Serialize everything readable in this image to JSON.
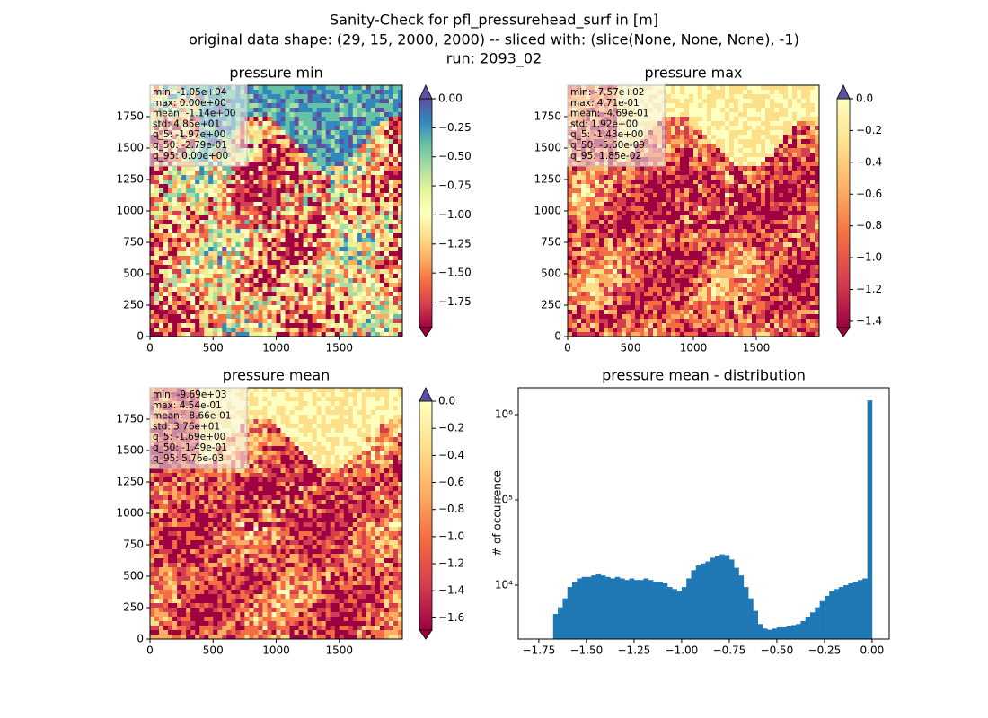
{
  "title_lines": [
    "Sanity-Check for pfl_pressurehead_surf in [m]",
    "original data shape: (29, 15, 2000, 2000) -- sliced with: (slice(None, None, None), -1)",
    "run: 2093_02"
  ],
  "chart_data": [
    {
      "type": "heatmap",
      "title": "pressure min",
      "palette": "full",
      "stats": [
        "min: -1.05e+04",
        "max: 0.00e+00",
        "mean: -1.14e+00",
        "std: 4.85e+01",
        "q_5: -1.97e+00",
        "q_50: -2.79e-01",
        "q_95: 0.00e+00"
      ],
      "xlim": [
        0,
        2000
      ],
      "ylim": [
        0,
        2000
      ],
      "xticks": [
        0,
        500,
        1000,
        1500
      ],
      "yticks": [
        0,
        250,
        500,
        750,
        1000,
        1250,
        1500,
        1750
      ],
      "clim": [
        -1.97,
        0
      ],
      "cticks": [
        {
          "value": 0,
          "label": "0.00"
        },
        {
          "value": -0.25,
          "label": "−0.25"
        },
        {
          "value": -0.5,
          "label": "−0.50"
        },
        {
          "value": -0.75,
          "label": "−0.75"
        },
        {
          "value": -1,
          "label": "−1.00"
        },
        {
          "value": -1.25,
          "label": "−1.25"
        },
        {
          "value": -1.5,
          "label": "−1.50"
        },
        {
          "value": -1.75,
          "label": "−1.75"
        }
      ]
    },
    {
      "type": "heatmap",
      "title": "pressure max",
      "palette": "half",
      "stats": [
        "min: -7.57e+02",
        "max: 4.71e-01",
        "mean: -4.69e-01",
        "std: 1.92e+00",
        "q_5: -1.43e+00",
        "q_50: -5.60e-09",
        "q_95: 1.85e-02"
      ],
      "xlim": [
        0,
        2000
      ],
      "ylim": [
        0,
        2000
      ],
      "xticks": [
        0,
        500,
        1000,
        1500
      ],
      "yticks": [
        0,
        250,
        500,
        750,
        1000,
        1250,
        1500,
        1750
      ],
      "clim": [
        -1.44,
        0
      ],
      "cticks": [
        {
          "value": 0,
          "label": "0.0"
        },
        {
          "value": -0.2,
          "label": "−0.2"
        },
        {
          "value": -0.4,
          "label": "−0.4"
        },
        {
          "value": -0.6,
          "label": "−0.6"
        },
        {
          "value": -0.8,
          "label": "−0.8"
        },
        {
          "value": -1,
          "label": "−1.0"
        },
        {
          "value": -1.2,
          "label": "−1.2"
        },
        {
          "value": -1.4,
          "label": "−1.4"
        }
      ]
    },
    {
      "type": "heatmap",
      "title": "pressure mean",
      "palette": "half",
      "stats": [
        "min: -9.69e+03",
        "max: 4.54e-01",
        "mean: -8.66e-01",
        "std: 3.76e+01",
        "q_5: -1.69e+00",
        "q_50: -1.49e-01",
        "q_95: 5.76e-03"
      ],
      "xlim": [
        0,
        2000
      ],
      "ylim": [
        0,
        2000
      ],
      "xticks": [
        0,
        500,
        1000,
        1500
      ],
      "yticks": [
        0,
        250,
        500,
        750,
        1000,
        1250,
        1500,
        1750
      ],
      "clim": [
        -1.69,
        0
      ],
      "cticks": [
        {
          "value": 0,
          "label": "0.0"
        },
        {
          "value": -0.2,
          "label": "−0.2"
        },
        {
          "value": -0.4,
          "label": "−0.4"
        },
        {
          "value": -0.6,
          "label": "−0.6"
        },
        {
          "value": -0.8,
          "label": "−0.8"
        },
        {
          "value": -1,
          "label": "−1.0"
        },
        {
          "value": -1.2,
          "label": "−1.2"
        },
        {
          "value": -1.4,
          "label": "−1.4"
        },
        {
          "value": -1.6,
          "label": "−1.6"
        }
      ]
    },
    {
      "type": "histogram",
      "title": "pressure mean - distribution",
      "ylabel": "# of occurrence",
      "color": "#1f77b4",
      "log_y": true,
      "bins": [
        -1.675,
        -1.65,
        -1.625,
        -1.6,
        -1.575,
        -1.55,
        -1.525,
        -1.5,
        -1.475,
        -1.45,
        -1.425,
        -1.4,
        -1.375,
        -1.35,
        -1.325,
        -1.3,
        -1.275,
        -1.25,
        -1.225,
        -1.2,
        -1.175,
        -1.15,
        -1.125,
        -1.1,
        -1.075,
        -1.05,
        -1.025,
        -1,
        -0.975,
        -0.95,
        -0.925,
        -0.9,
        -0.875,
        -0.85,
        -0.825,
        -0.8,
        -0.775,
        -0.75,
        -0.725,
        -0.7,
        -0.675,
        -0.65,
        -0.625,
        -0.6,
        -0.575,
        -0.55,
        -0.525,
        -0.5,
        -0.475,
        -0.45,
        -0.425,
        -0.4,
        -0.375,
        -0.35,
        -0.325,
        -0.3,
        -0.275,
        -0.25,
        -0.225,
        -0.2,
        -0.175,
        -0.15,
        -0.125,
        -0.1,
        -0.075,
        -0.05,
        -0.025,
        0
      ],
      "values": [
        4600,
        5500,
        7000,
        9500,
        11000,
        12000,
        12500,
        12500,
        13000,
        13500,
        13000,
        12500,
        12000,
        12500,
        12000,
        11500,
        12000,
        11500,
        11500,
        12000,
        11500,
        11000,
        11000,
        10500,
        9500,
        9000,
        8500,
        9500,
        12000,
        15000,
        17000,
        18000,
        19000,
        21000,
        22000,
        23000,
        22500,
        20000,
        16000,
        13000,
        9500,
        7000,
        5000,
        3500,
        3100,
        3000,
        3100,
        3200,
        3200,
        3300,
        3400,
        3500,
        3800,
        4200,
        4800,
        5500,
        6500,
        7500,
        8500,
        9000,
        9500,
        10000,
        10500,
        11000,
        11500,
        12000,
        1470000
      ],
      "xlim": [
        -1.858,
        0.09
      ],
      "ylim": [
        2335,
        2070000
      ],
      "xticks": [
        {
          "value": -1.75,
          "label": "−1.75"
        },
        {
          "value": -1.5,
          "label": "−1.50"
        },
        {
          "value": -1.25,
          "label": "−1.25"
        },
        {
          "value": -1,
          "label": "−1.00"
        },
        {
          "value": -0.75,
          "label": "−0.75"
        },
        {
          "value": -0.5,
          "label": "−0.50"
        },
        {
          "value": -0.25,
          "label": "−0.25"
        },
        {
          "value": 0,
          "label": "0.00"
        }
      ],
      "yticks": [
        {
          "value": 10000,
          "label": "10⁴"
        },
        {
          "value": 100000,
          "label": "10⁵"
        },
        {
          "value": 1000000,
          "label": "10⁶"
        }
      ]
    }
  ]
}
